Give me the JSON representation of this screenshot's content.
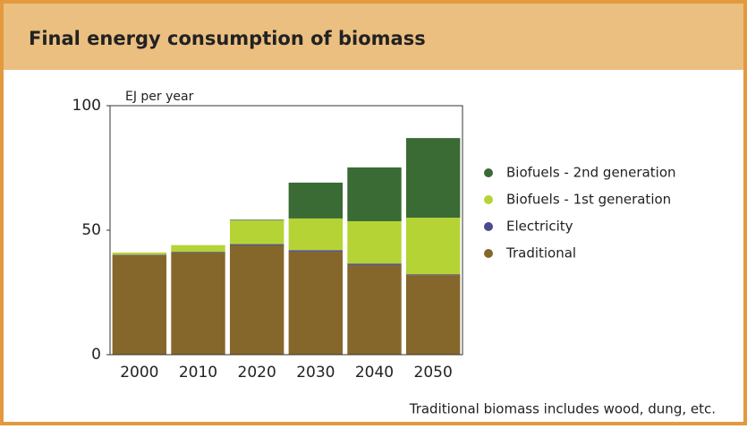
{
  "chart_data": {
    "type": "stacked_bar",
    "title": "Final energy consumption of biomass",
    "y_label": "EJ per year",
    "note": "Traditional biomass includes wood, dung, etc.",
    "categories": [
      "2000",
      "2010",
      "2020",
      "2030",
      "2040",
      "2050"
    ],
    "series": [
      {
        "name": "Traditional",
        "color": "#86672b",
        "values": [
          40,
          41,
          43.9,
          41.4,
          36,
          32
        ]
      },
      {
        "name": "Electricity",
        "color": "#4b4a8f",
        "values": [
          0.2,
          0.3,
          0.5,
          0.6,
          0.6,
          0.3
        ]
      },
      {
        "name": "Biofuels - 1st generation",
        "color": "#b5d334",
        "values": [
          0.8,
          2.7,
          9.5,
          12.7,
          17,
          22.7
        ]
      },
      {
        "name": "Biofuels - 2nd generation",
        "color": "#3a6b35",
        "values": [
          0,
          0,
          0.3,
          14.4,
          21.6,
          32
        ]
      }
    ],
    "ylim": [
      0,
      100
    ],
    "yticks": [
      0,
      50,
      100
    ],
    "grid": false,
    "legend": "right"
  }
}
